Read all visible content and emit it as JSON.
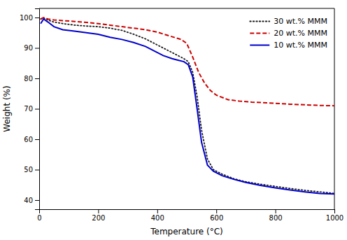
{
  "chart_data": {
    "type": "line",
    "xlabel": "Temperature (°C)",
    "ylabel": "Weight (%)",
    "xlim": [
      0,
      1000
    ],
    "ylim": [
      37,
      103
    ],
    "xticks": [
      0,
      200,
      400,
      600,
      800,
      1000
    ],
    "yticks": [
      40,
      50,
      60,
      70,
      80,
      90,
      100
    ],
    "grid": false,
    "legend": "upper right",
    "series": [
      {
        "name": "30 wt.% MMM",
        "color": "#1a1a1a",
        "line_style": "dotted",
        "x": [
          5,
          15,
          30,
          50,
          80,
          120,
          160,
          200,
          240,
          280,
          320,
          360,
          390,
          420,
          450,
          470,
          490,
          505,
          520,
          535,
          550,
          570,
          590,
          620,
          660,
          700,
          750,
          800,
          850,
          900,
          950,
          1000
        ],
        "values": [
          99.5,
          99.8,
          99.2,
          98.5,
          98.0,
          97.5,
          97.2,
          97.0,
          96.5,
          95.8,
          94.5,
          93.0,
          91.5,
          90.0,
          88.5,
          87.5,
          86.5,
          85.5,
          82.0,
          74.0,
          63.0,
          53.5,
          50.0,
          48.5,
          47.0,
          46.0,
          45.2,
          44.5,
          43.8,
          43.2,
          42.7,
          42.2
        ]
      },
      {
        "name": "20 wt.% MMM",
        "color": "#cc0000",
        "line_style": "dashed",
        "x": [
          5,
          15,
          30,
          50,
          80,
          120,
          160,
          200,
          240,
          280,
          320,
          360,
          400,
          440,
          480,
          500,
          520,
          540,
          560,
          580,
          600,
          640,
          680,
          720,
          760,
          800,
          850,
          900,
          950,
          1000
        ],
        "values": [
          99.5,
          100.0,
          99.5,
          99.2,
          99.0,
          98.7,
          98.4,
          98.0,
          97.5,
          97.0,
          96.5,
          96.0,
          95.2,
          94.0,
          92.8,
          91.5,
          87.0,
          82.0,
          78.5,
          76.0,
          74.5,
          73.0,
          72.5,
          72.2,
          72.0,
          71.8,
          71.5,
          71.3,
          71.1,
          71.0
        ]
      },
      {
        "name": "10 wt.% MMM",
        "color": "#0000cc",
        "line_style": "solid",
        "x": [
          5,
          15,
          30,
          50,
          80,
          120,
          160,
          200,
          240,
          280,
          320,
          360,
          390,
          420,
          450,
          470,
          490,
          505,
          520,
          535,
          550,
          570,
          590,
          620,
          660,
          700,
          750,
          800,
          850,
          900,
          950,
          1000
        ],
        "values": [
          98.0,
          99.5,
          98.5,
          97.0,
          96.0,
          95.5,
          95.0,
          94.5,
          93.5,
          92.8,
          91.8,
          90.5,
          89.0,
          87.5,
          86.5,
          86.0,
          85.5,
          84.5,
          80.5,
          70.0,
          59.0,
          51.5,
          49.5,
          48.0,
          46.8,
          45.8,
          44.8,
          44.0,
          43.3,
          42.7,
          42.2,
          42.0
        ]
      }
    ]
  }
}
